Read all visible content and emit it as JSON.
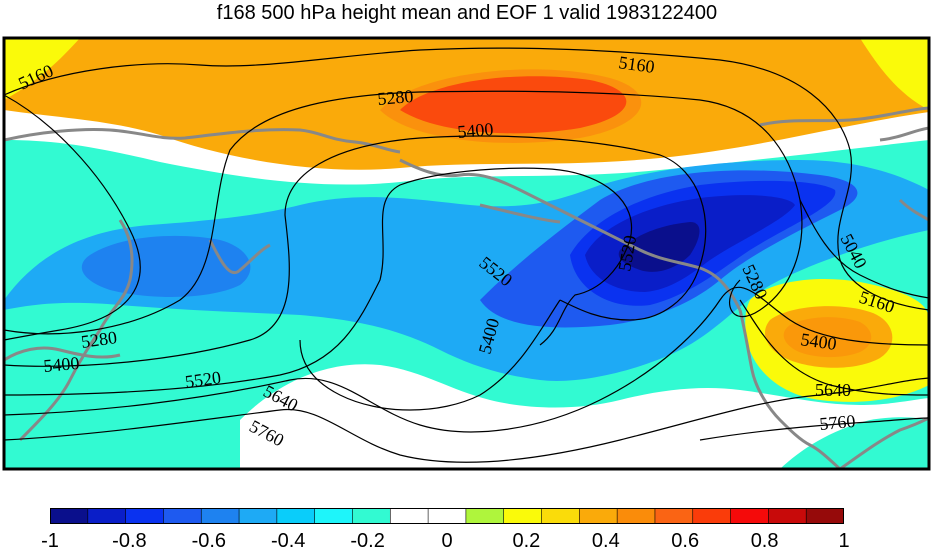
{
  "title": "f168 500 hPa height mean and EOF 1 valid 1983122400",
  "contours": {
    "labels": [
      "5160",
      "5280",
      "5400",
      "5160",
      "5280",
      "5400",
      "5520",
      "5640",
      "5760",
      "5520",
      "5400",
      "5520",
      "5280",
      "5040",
      "5160",
      "5400",
      "5640",
      "5760"
    ]
  },
  "colorbar": {
    "min": -1,
    "max": 1,
    "ticks": [
      "-1",
      "-0.8",
      "-0.6",
      "-0.4",
      "-0.2",
      "0",
      "0.2",
      "0.4",
      "0.6",
      "0.8",
      "1"
    ],
    "colors": [
      "#0a0f8c",
      "#0a1ec8",
      "#0a32f0",
      "#1e5af0",
      "#1e82f0",
      "#1eaaf5",
      "#0acdfa",
      "#1ef5fa",
      "#32fad2",
      "#ffffff",
      "#ffffff",
      "#aff53c",
      "#fafa0a",
      "#fadc0a",
      "#faaa0a",
      "#fa8c0a",
      "#fa6414",
      "#fa3c0a",
      "#f50a0a",
      "#c80a0a",
      "#960a0a"
    ]
  }
}
